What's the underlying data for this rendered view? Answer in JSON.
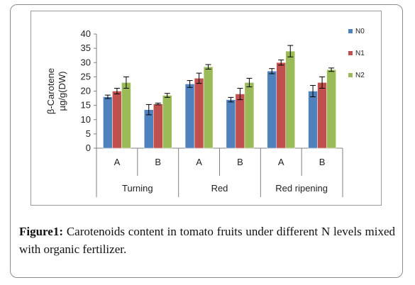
{
  "chart_data": {
    "type": "bar",
    "ylabel_line1": "β-Carotene",
    "ylabel_line2": "µg/g(DW)",
    "ylim": [
      0,
      40
    ],
    "yticks": [
      0,
      5,
      10,
      15,
      20,
      25,
      30,
      35,
      40
    ],
    "categories": [
      "A",
      "B",
      "A",
      "B",
      "A",
      "B"
    ],
    "groups": [
      "Turning",
      "Red",
      "Red ripening"
    ],
    "legend_position": "right",
    "series": [
      {
        "name": "N0",
        "color": "#4f81bd",
        "values": [
          18,
          13.5,
          22.5,
          17,
          27,
          20
        ],
        "errors": [
          0.6,
          1.8,
          1.2,
          0.8,
          0.9,
          2
        ]
      },
      {
        "name": "N1",
        "color": "#c0504d",
        "values": [
          20,
          15.5,
          24.5,
          19,
          30,
          23
        ],
        "errors": [
          1,
          0.3,
          1.8,
          2,
          0.9,
          2
        ]
      },
      {
        "name": "N2",
        "color": "#9bbb59",
        "values": [
          23,
          18.5,
          28.5,
          23,
          34,
          27.5
        ],
        "errors": [
          2,
          0.7,
          0.8,
          1.5,
          2,
          0.6
        ]
      }
    ]
  },
  "caption": {
    "label": "Figure1:",
    "text": " Carotenoids content in tomato fruits under different N levels mixed with organic fertilizer."
  }
}
